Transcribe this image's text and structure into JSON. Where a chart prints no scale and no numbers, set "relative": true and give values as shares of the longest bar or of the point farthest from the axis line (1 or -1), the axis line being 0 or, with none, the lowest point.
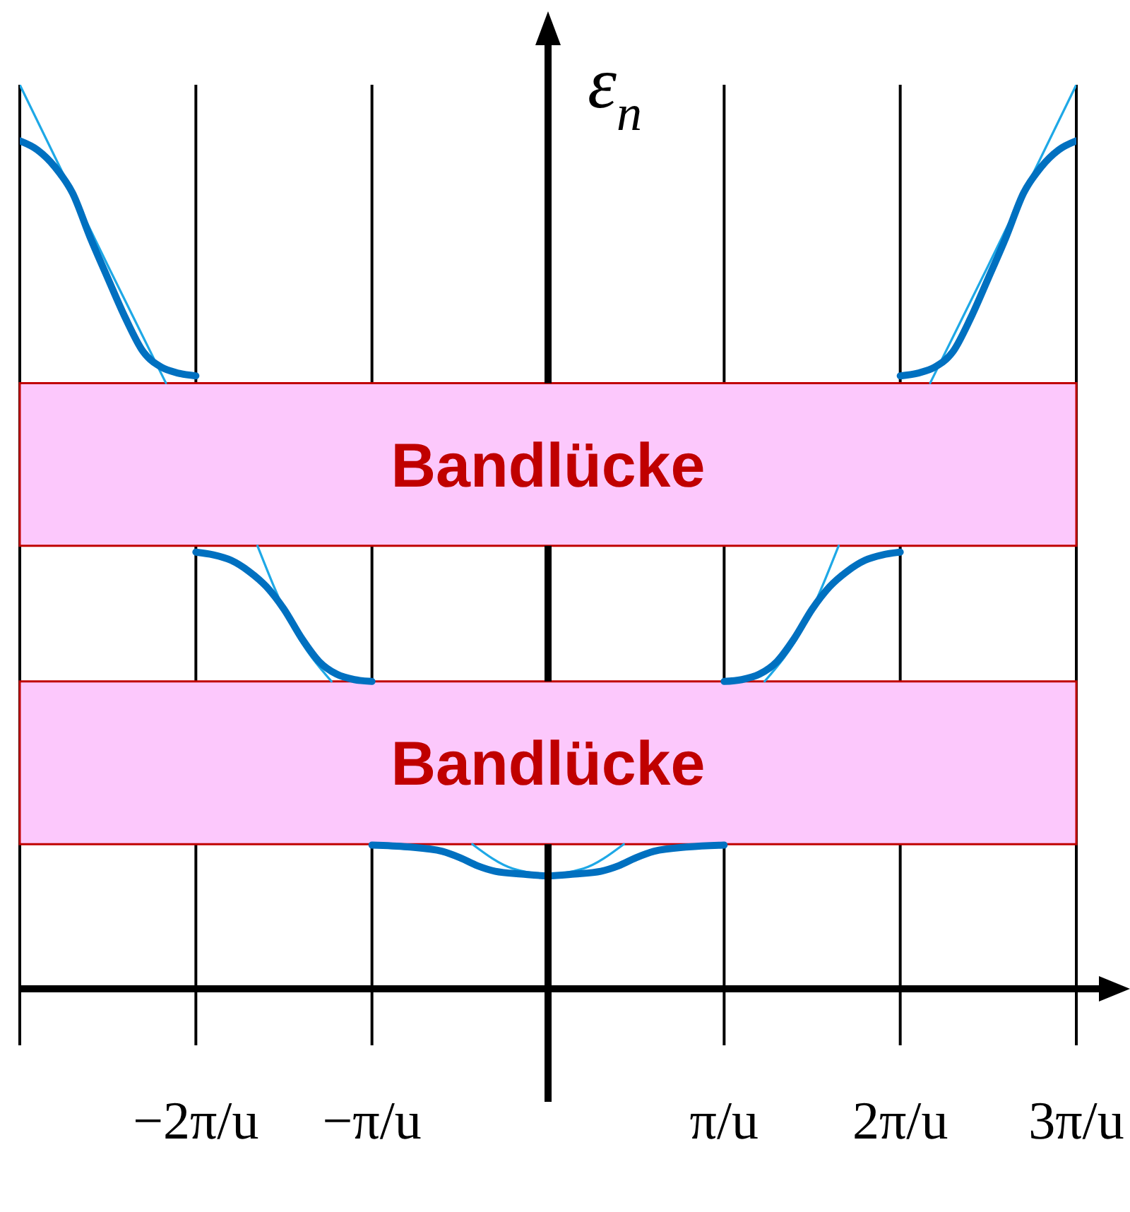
{
  "chart_data": {
    "type": "line",
    "relative": true,
    "ylabel": "ε$_{n}$",
    "xlim": [
      -3,
      3
    ],
    "xticks": [
      {
        "value": -3,
        "label": null
      },
      {
        "value": -2,
        "label": "−2π/u"
      },
      {
        "value": -1,
        "label": "−π/u"
      },
      {
        "value": 1,
        "label": "π/u"
      },
      {
        "value": 2,
        "label": "2π/u"
      },
      {
        "value": 3,
        "label": "3π/u"
      }
    ],
    "grid": "x",
    "series": [
      {
        "color": "#1ea8e6",
        "x": [
          -3,
          -2.75,
          -2.5,
          -2.17,
          -1.9,
          -1.65,
          -1.45,
          -1.23,
          -0.8,
          -0.43,
          -0.2,
          0,
          0.2,
          0.43,
          0.8,
          1.23,
          1.45,
          1.65,
          1.9,
          2.17,
          2.5,
          2.75,
          3
        ],
        "values": [
          1,
          0.9,
          0.8,
          0.67,
          null,
          0.49,
          0.4,
          0.34,
          null,
          0.16,
          0.133,
          0.127,
          0.133,
          0.16,
          null,
          0.34,
          0.4,
          0.49,
          null,
          0.67,
          0.8,
          0.9,
          1
        ]
      },
      {
        "color": "#0070c0",
        "x": [
          -3,
          -2.9,
          -2.8,
          -2.7,
          -2.6,
          -2.5,
          -2.4,
          -2.3,
          -2.2,
          -2.1,
          -2
        ],
        "values": [
          0.938,
          0.928,
          0.909,
          0.88,
          0.831,
          0.786,
          0.742,
          0.705,
          0.688,
          0.681,
          0.678
        ]
      },
      {
        "color": "#0070c0",
        "x": [
          -2,
          -1.9,
          -1.8,
          -1.7,
          -1.6,
          -1.5,
          -1.4,
          -1.3,
          -1.2,
          -1.1,
          -1
        ],
        "values": [
          0.483,
          0.48,
          0.474,
          0.462,
          0.445,
          0.42,
          0.388,
          0.362,
          0.348,
          0.342,
          0.34
        ]
      },
      {
        "color": "#0070c0",
        "x": [
          -1,
          -0.8,
          -0.6,
          -0.5,
          -0.4,
          -0.3,
          -0.15,
          0,
          0.15,
          0.3,
          0.4,
          0.5,
          0.6,
          0.8,
          1
        ],
        "values": [
          0.159,
          0.157,
          0.152,
          0.145,
          0.136,
          0.13,
          0.127,
          0.125,
          0.127,
          0.13,
          0.136,
          0.145,
          0.152,
          0.157,
          0.159
        ]
      },
      {
        "color": "#0070c0",
        "x": [
          1,
          1.1,
          1.2,
          1.3,
          1.4,
          1.5,
          1.6,
          1.7,
          1.8,
          1.9,
          2
        ],
        "values": [
          0.34,
          0.342,
          0.348,
          0.362,
          0.388,
          0.42,
          0.445,
          0.462,
          0.474,
          0.48,
          0.483
        ]
      },
      {
        "color": "#0070c0",
        "x": [
          2,
          2.1,
          2.2,
          2.3,
          2.4,
          2.5,
          2.6,
          2.7,
          2.8,
          2.9,
          3
        ],
        "values": [
          0.678,
          0.681,
          0.688,
          0.705,
          0.742,
          0.786,
          0.831,
          0.88,
          0.909,
          0.928,
          0.938
        ]
      }
    ],
    "bands": [
      {
        "axis": "y",
        "from": 0.49,
        "to": 0.67,
        "label": "Bandlücke",
        "color": "#fcc8fc"
      },
      {
        "axis": "y",
        "from": 0.16,
        "to": 0.34,
        "label": "Bandlücke",
        "color": "#fcc8fc"
      }
    ]
  }
}
